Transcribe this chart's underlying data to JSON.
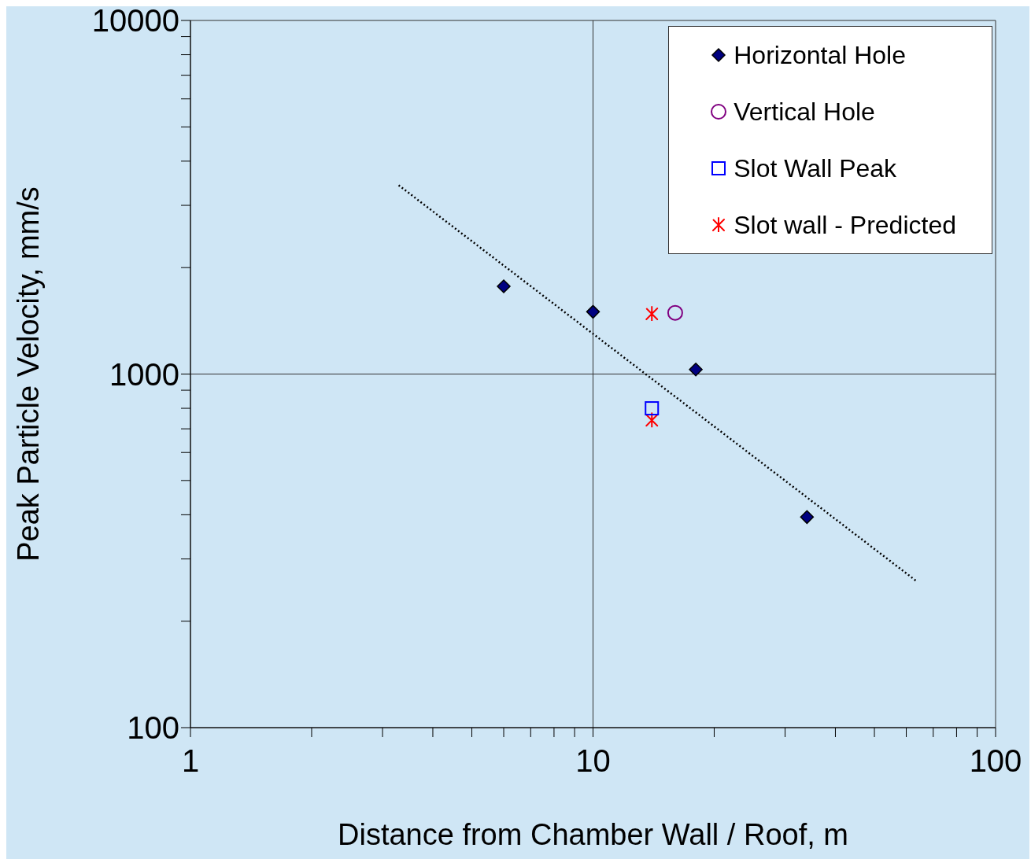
{
  "chart_data": {
    "type": "scatter",
    "xlabel": "Distance from Chamber Wall / Roof, m",
    "ylabel": "Peak Particle Velocity, mm/s",
    "log": "xy",
    "grid": true,
    "legend": "top right",
    "xlim": [
      1,
      100
    ],
    "ylim": [
      100,
      10000
    ],
    "xticks": [
      1,
      {
        "value": 2,
        "label": null
      },
      {
        "value": 3,
        "label": null
      },
      {
        "value": 4,
        "label": null
      },
      {
        "value": 5,
        "label": null
      },
      {
        "value": 6,
        "label": null
      },
      {
        "value": 7,
        "label": null
      },
      {
        "value": 8,
        "label": null
      },
      {
        "value": 9,
        "label": null
      },
      10,
      {
        "value": 20,
        "label": null
      },
      {
        "value": 30,
        "label": null
      },
      {
        "value": 40,
        "label": null
      },
      {
        "value": 50,
        "label": null
      },
      {
        "value": 60,
        "label": null
      },
      {
        "value": 70,
        "label": null
      },
      {
        "value": 80,
        "label": null
      },
      {
        "value": 90,
        "label": null
      },
      100
    ],
    "yticks": [
      100,
      {
        "value": 200,
        "label": null
      },
      {
        "value": 300,
        "label": null
      },
      {
        "value": 400,
        "label": null
      },
      {
        "value": 500,
        "label": null
      },
      {
        "value": 600,
        "label": null
      },
      {
        "value": 700,
        "label": null
      },
      {
        "value": 800,
        "label": null
      },
      {
        "value": 900,
        "label": null
      },
      1000,
      {
        "value": 2000,
        "label": null
      },
      {
        "value": 3000,
        "label": null
      },
      {
        "value": 4000,
        "label": null
      },
      {
        "value": 5000,
        "label": null
      },
      {
        "value": 6000,
        "label": null
      },
      {
        "value": 7000,
        "label": null
      },
      {
        "value": 8000,
        "label": null
      },
      {
        "value": 9000,
        "label": null
      },
      10000
    ],
    "series": [
      {
        "type": "line",
        "color": "#000000",
        "line_style": "dotted",
        "marker": "none",
        "x": [
          3.29,
          63.5
        ],
        "values": [
          3420,
          260
        ]
      },
      {
        "name": "Horizontal Hole",
        "color": "#000080",
        "marker": "diamond",
        "x": [
          6,
          10,
          18,
          34
        ],
        "values": [
          1770,
          1500,
          1030,
          394
        ]
      },
      {
        "name": "Vertical Hole",
        "color": "#800080",
        "marker": "circle",
        "x": [
          16
        ],
        "values": [
          1490
        ]
      },
      {
        "name": "Slot Wall Peak",
        "color": "#0000ff",
        "marker": "square",
        "x": [
          14
        ],
        "values": [
          800
        ]
      },
      {
        "name": "Slot wall - Predicted",
        "color": "#ff0000",
        "marker": "cross",
        "x": [
          14,
          14
        ],
        "values": [
          1480,
          740
        ]
      }
    ]
  }
}
